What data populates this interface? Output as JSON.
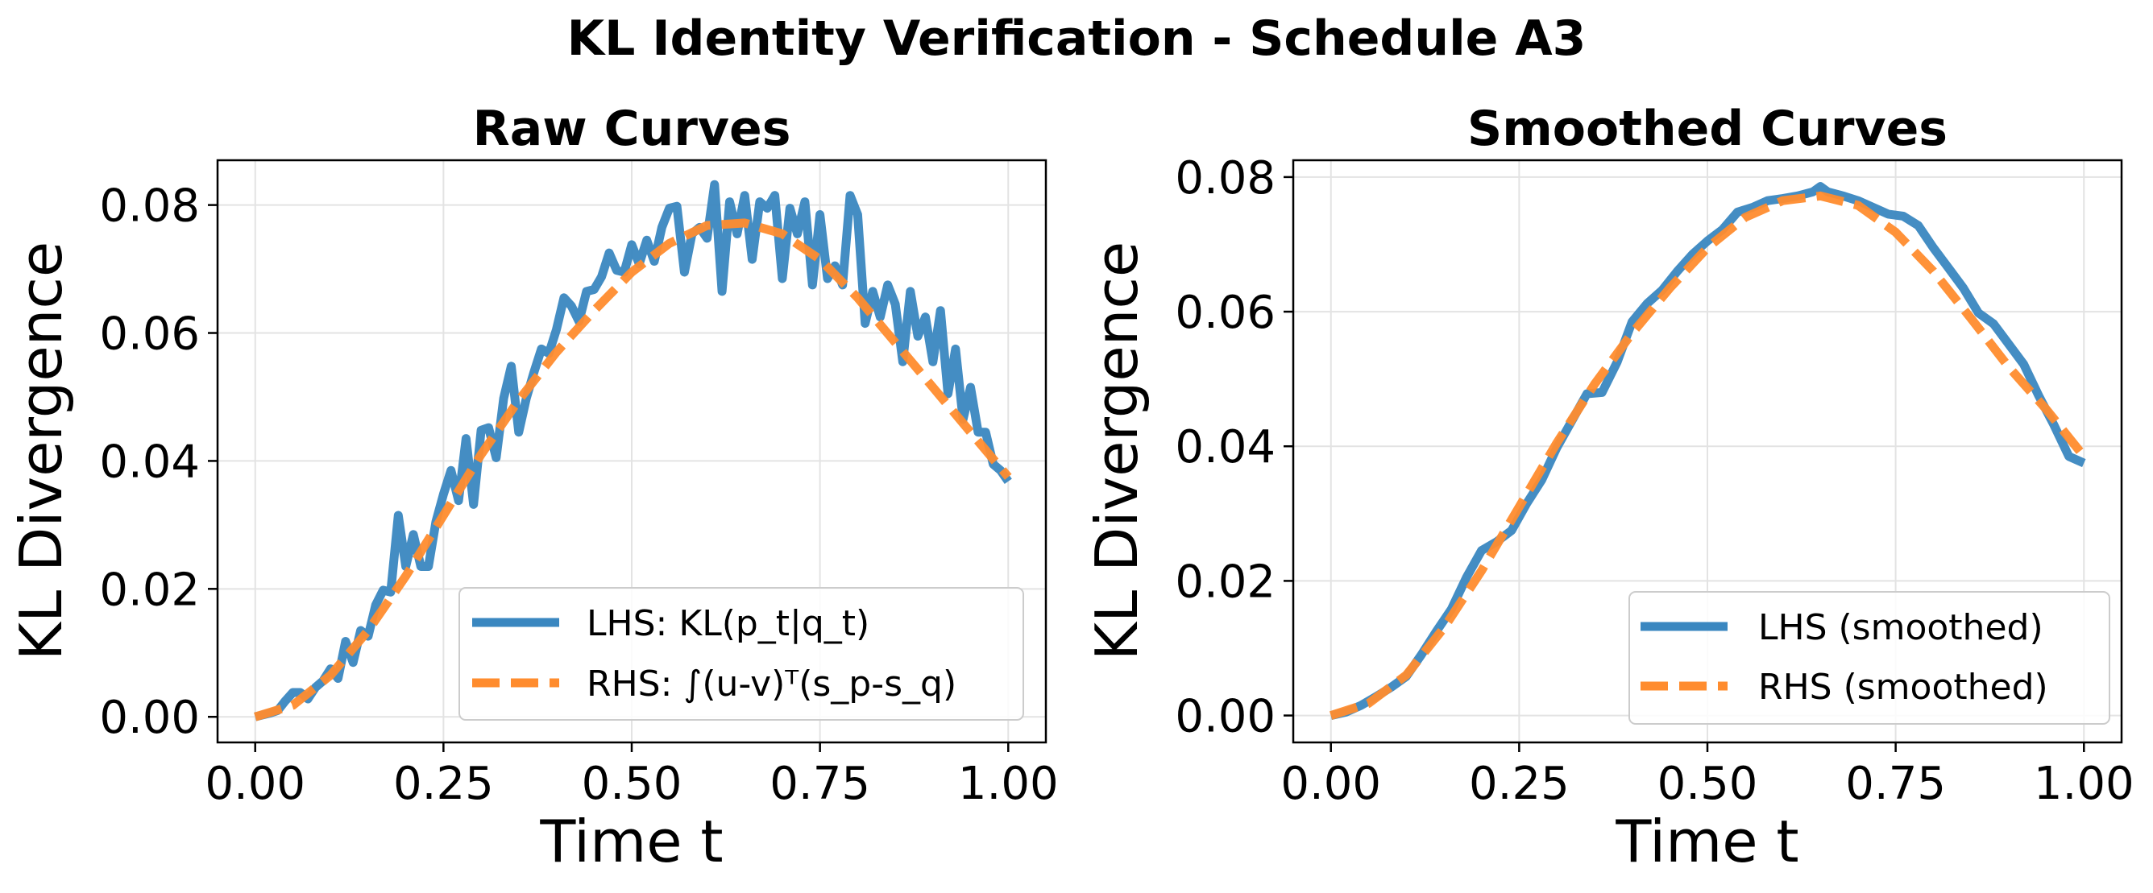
{
  "figure": {
    "suptitle": "KL Identity Verification - Schedule A3"
  },
  "chart_data": [
    {
      "type": "line",
      "title": "Raw Curves",
      "xlabel": "Time t",
      "ylabel": "KL Divergence",
      "xlim": [
        -0.05,
        1.05
      ],
      "ylim": [
        -0.004,
        0.087
      ],
      "xticks": [
        "0.00",
        "0.25",
        "0.50",
        "0.75",
        "1.00"
      ],
      "yticks": [
        "0.00",
        "0.02",
        "0.04",
        "0.06",
        "0.08"
      ],
      "grid": true,
      "legend_position": "lower right",
      "series": [
        {
          "name": "LHS: KL(p_t|q_t)",
          "color": "#3a87c0",
          "style": "solid",
          "x": [
            0.0,
            0.01,
            0.02,
            0.03,
            0.04,
            0.05,
            0.06,
            0.07,
            0.08,
            0.09,
            0.1,
            0.11,
            0.12,
            0.13,
            0.14,
            0.15,
            0.16,
            0.17,
            0.18,
            0.19,
            0.2,
            0.21,
            0.22,
            0.23,
            0.24,
            0.25,
            0.26,
            0.27,
            0.28,
            0.29,
            0.3,
            0.31,
            0.32,
            0.33,
            0.34,
            0.35,
            0.36,
            0.37,
            0.38,
            0.39,
            0.4,
            0.41,
            0.42,
            0.43,
            0.44,
            0.45,
            0.46,
            0.47,
            0.48,
            0.49,
            0.5,
            0.51,
            0.52,
            0.53,
            0.54,
            0.55,
            0.56,
            0.57,
            0.58,
            0.59,
            0.6,
            0.61,
            0.62,
            0.63,
            0.64,
            0.65,
            0.66,
            0.67,
            0.68,
            0.69,
            0.7,
            0.71,
            0.72,
            0.73,
            0.74,
            0.75,
            0.76,
            0.77,
            0.78,
            0.79,
            0.8,
            0.81,
            0.82,
            0.83,
            0.84,
            0.85,
            0.86,
            0.87,
            0.88,
            0.89,
            0.9,
            0.91,
            0.92,
            0.93,
            0.94,
            0.95,
            0.96,
            0.97,
            0.98,
            0.99,
            1.0
          ],
          "y": [
            0.0,
            0.0003,
            0.0006,
            0.001,
            0.0025,
            0.0038,
            0.0038,
            0.0028,
            0.0046,
            0.0056,
            0.0075,
            0.006,
            0.0118,
            0.0085,
            0.0135,
            0.0126,
            0.0175,
            0.0198,
            0.0195,
            0.0315,
            0.0235,
            0.0285,
            0.0235,
            0.0235,
            0.0305,
            0.0348,
            0.0385,
            0.0338,
            0.0435,
            0.0332,
            0.0448,
            0.0452,
            0.0405,
            0.0498,
            0.0548,
            0.0445,
            0.0498,
            0.0538,
            0.0575,
            0.0568,
            0.0605,
            0.0655,
            0.0642,
            0.0618,
            0.0665,
            0.0668,
            0.0688,
            0.0725,
            0.0698,
            0.0695,
            0.0738,
            0.0708,
            0.0745,
            0.0712,
            0.0765,
            0.0795,
            0.0798,
            0.0695,
            0.0755,
            0.0765,
            0.0748,
            0.0832,
            0.0665,
            0.0805,
            0.0755,
            0.0815,
            0.0715,
            0.0805,
            0.0795,
            0.0815,
            0.0685,
            0.0795,
            0.0755,
            0.0805,
            0.0675,
            0.0785,
            0.0685,
            0.0705,
            0.0675,
            0.0815,
            0.0785,
            0.0615,
            0.0665,
            0.0625,
            0.0675,
            0.0645,
            0.0555,
            0.0665,
            0.0595,
            0.0625,
            0.0555,
            0.0635,
            0.0505,
            0.0575,
            0.0465,
            0.0515,
            0.0445,
            0.0445,
            0.0395,
            0.0385,
            0.0368
          ]
        },
        {
          "name": "RHS: ∫(u-v)ᵀ(s_p-s_q)",
          "color": "#ff8c2e",
          "style": "dashed",
          "x": [
            0.0,
            0.05,
            0.1,
            0.15,
            0.2,
            0.25,
            0.3,
            0.35,
            0.4,
            0.45,
            0.5,
            0.55,
            0.6,
            0.65,
            0.7,
            0.75,
            0.8,
            0.85,
            0.9,
            0.95,
            1.0
          ],
          "y": [
            0.0,
            0.0018,
            0.0065,
            0.0135,
            0.022,
            0.0315,
            0.041,
            0.0495,
            0.057,
            0.0635,
            0.0695,
            0.074,
            0.0768,
            0.0772,
            0.0755,
            0.0715,
            0.0655,
            0.0585,
            0.0515,
            0.0445,
            0.0375
          ]
        }
      ]
    },
    {
      "type": "line",
      "title": "Smoothed Curves",
      "xlabel": "Time t",
      "ylabel": "KL Divergence",
      "xlim": [
        -0.05,
        1.05
      ],
      "ylim": [
        -0.004,
        0.0825
      ],
      "xticks": [
        "0.00",
        "0.25",
        "0.50",
        "0.75",
        "1.00"
      ],
      "yticks": [
        "0.00",
        "0.02",
        "0.04",
        "0.06",
        "0.08"
      ],
      "grid": true,
      "legend_position": "lower right",
      "series": [
        {
          "name": "LHS (smoothed)",
          "color": "#3a87c0",
          "style": "solid",
          "x": [
            0.0,
            0.02,
            0.04,
            0.06,
            0.08,
            0.1,
            0.12,
            0.14,
            0.16,
            0.18,
            0.2,
            0.22,
            0.24,
            0.26,
            0.28,
            0.3,
            0.32,
            0.34,
            0.36,
            0.38,
            0.4,
            0.42,
            0.44,
            0.46,
            0.48,
            0.5,
            0.52,
            0.54,
            0.56,
            0.58,
            0.6,
            0.62,
            0.64,
            0.65,
            0.66,
            0.68,
            0.7,
            0.72,
            0.74,
            0.76,
            0.78,
            0.8,
            0.82,
            0.84,
            0.86,
            0.88,
            0.9,
            0.92,
            0.94,
            0.96,
            0.98,
            1.0
          ],
          "y": [
            0.0,
            0.0005,
            0.0015,
            0.0028,
            0.0042,
            0.0058,
            0.009,
            0.0125,
            0.0158,
            0.0205,
            0.0245,
            0.0258,
            0.0275,
            0.0315,
            0.035,
            0.0398,
            0.0438,
            0.0478,
            0.048,
            0.0525,
            0.0585,
            0.0612,
            0.0632,
            0.066,
            0.0685,
            0.0705,
            0.0722,
            0.0748,
            0.0755,
            0.0765,
            0.0768,
            0.0772,
            0.0778,
            0.0786,
            0.0778,
            0.0772,
            0.0765,
            0.0755,
            0.0745,
            0.0742,
            0.0728,
            0.0695,
            0.0665,
            0.0635,
            0.0598,
            0.0582,
            0.0552,
            0.0522,
            0.0475,
            0.0432,
            0.0385,
            0.0375
          ]
        },
        {
          "name": "RHS (smoothed)",
          "color": "#ff8c2e",
          "style": "dashed",
          "x": [
            0.0,
            0.05,
            0.1,
            0.15,
            0.2,
            0.25,
            0.3,
            0.35,
            0.4,
            0.45,
            0.5,
            0.55,
            0.6,
            0.65,
            0.7,
            0.75,
            0.8,
            0.85,
            0.9,
            0.95,
            1.0
          ],
          "y": [
            0.0,
            0.0018,
            0.006,
            0.013,
            0.0215,
            0.031,
            0.0405,
            0.0492,
            0.0568,
            0.0635,
            0.0695,
            0.074,
            0.0765,
            0.0772,
            0.0758,
            0.0718,
            0.066,
            0.059,
            0.0518,
            0.0455,
            0.0385
          ]
        }
      ]
    }
  ]
}
